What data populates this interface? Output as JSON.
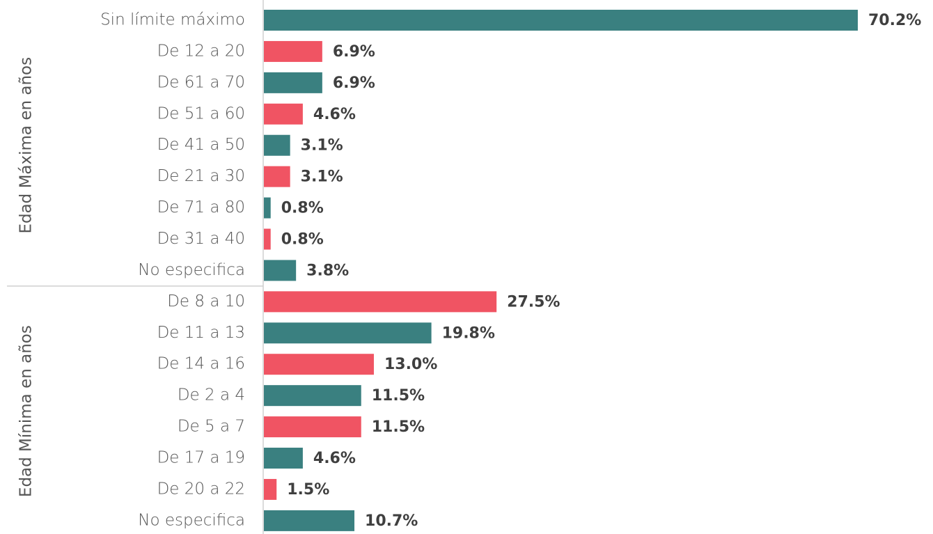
{
  "chart_data": {
    "type": "bar",
    "orientation": "horizontal",
    "groups": [
      {
        "name": "Edad Máxima en años",
        "categories": [
          "Sin límite máximo",
          "De 12 a 20",
          "De 61 a 70",
          "De 51 a 60",
          "De 41 a 50",
          "De 21 a 30",
          "De 71 a 80",
          "De 31 a 40",
          "No especifica"
        ],
        "values": [
          70.2,
          6.9,
          6.9,
          4.6,
          3.1,
          3.1,
          0.8,
          0.8,
          3.8
        ],
        "value_labels": [
          "70.2%",
          "6.9%",
          "6.9%",
          "4.6%",
          "3.1%",
          "3.1%",
          "0.8%",
          "0.8%",
          "3.8%"
        ],
        "colors": [
          "#3a8080",
          "#f05463",
          "#3a8080",
          "#f05463",
          "#3a8080",
          "#f05463",
          "#3a8080",
          "#f05463",
          "#3a8080"
        ]
      },
      {
        "name": "Edad Mínima en años",
        "categories": [
          "De 8 a 10",
          "De 11 a 13",
          "De 14 a 16",
          "De 2 a 4",
          "De 5 a 7",
          "De 17 a 19",
          "De 20 a 22",
          "No especifica"
        ],
        "values": [
          27.5,
          19.8,
          13.0,
          11.5,
          11.5,
          4.6,
          1.5,
          10.7
        ],
        "value_labels": [
          "27.5%",
          "19.8%",
          "13.0%",
          "11.5%",
          "11.5%",
          "4.6%",
          "1.5%",
          "10.7%"
        ],
        "colors": [
          "#f05463",
          "#3a8080",
          "#f05463",
          "#3a8080",
          "#f05463",
          "#3a8080",
          "#f05463",
          "#3a8080"
        ]
      }
    ]
  }
}
